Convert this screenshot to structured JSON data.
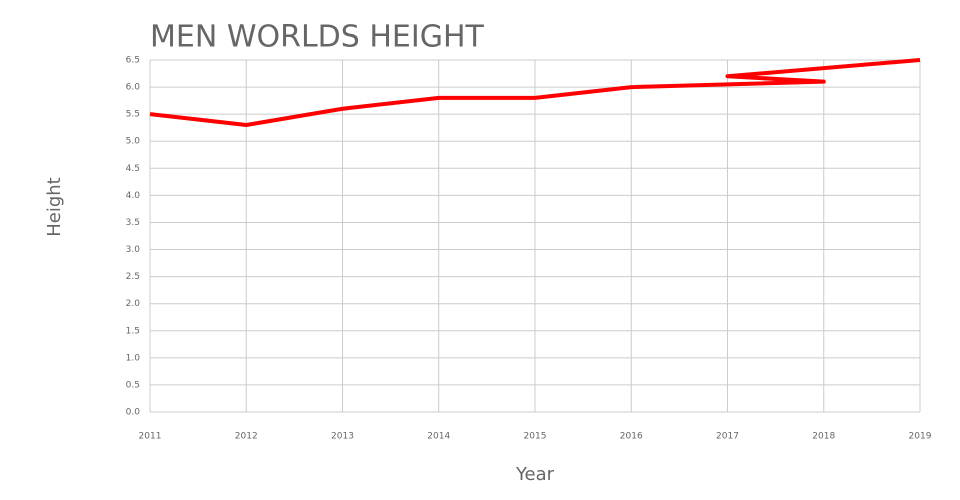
{
  "chart_data": {
    "type": "line",
    "title": "MEN WORLDS HEIGHT",
    "x_label": "Year",
    "y_label": "Height",
    "x": [
      2011,
      2012,
      2013,
      2014,
      2015,
      2016,
      2018,
      2017,
      2019
    ],
    "series": [
      {
        "color": "#ff0000",
        "values": [
          5.5,
          5.3,
          5.6,
          5.8,
          5.8,
          6.0,
          6.1,
          6.2,
          6.5
        ]
      }
    ],
    "xlim": [
      2011,
      2019
    ],
    "xticks": [
      2011,
      2012,
      2013,
      2014,
      2015,
      2016,
      2017,
      2018,
      2019
    ],
    "ylim": [
      0,
      6.5
    ],
    "yticks": [
      {
        "value": 0,
        "label": "0.0"
      },
      0.5,
      {
        "value": 1,
        "label": "1.0"
      },
      1.5,
      {
        "value": 2,
        "label": "2.0"
      },
      2.5,
      {
        "value": 3,
        "label": "3.0"
      },
      3.5,
      {
        "value": 4,
        "label": "4.0"
      },
      4.5,
      {
        "value": 5,
        "label": "5.0"
      },
      5.5,
      {
        "value": 6,
        "label": "6.0"
      },
      6.5
    ],
    "grid": true
  }
}
